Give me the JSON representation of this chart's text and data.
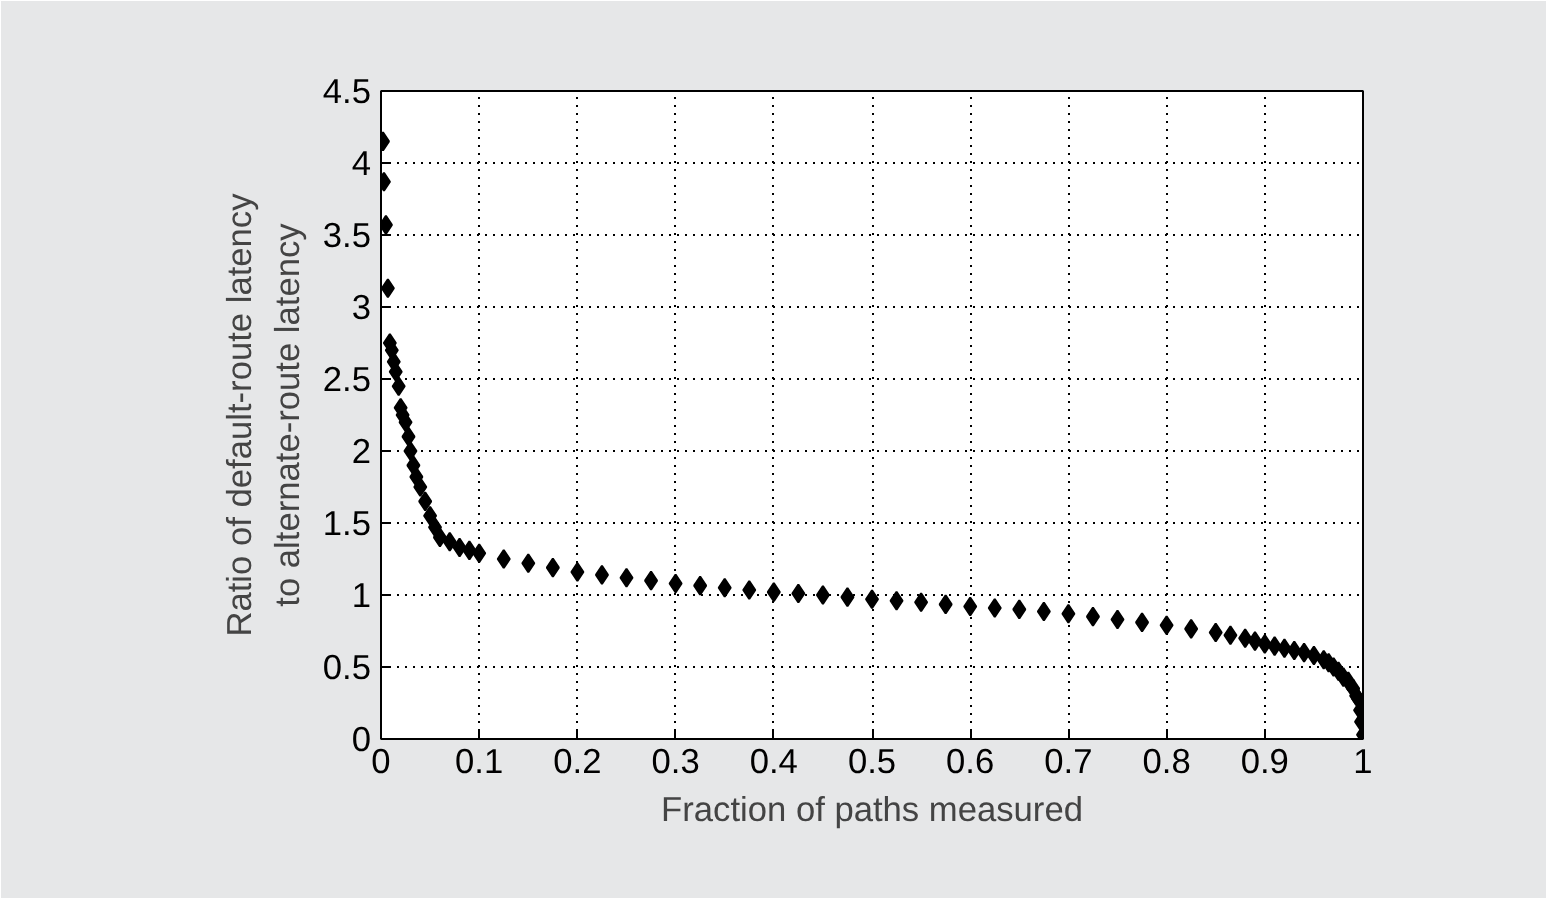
{
  "chart_data": {
    "type": "scatter",
    "xlabel": "Fraction of paths measured",
    "ylabel": "Ratio of default-route latency\nto alternate-route latency",
    "x": [
      0.002,
      0.003,
      0.005,
      0.007,
      0.009,
      0.011,
      0.013,
      0.015,
      0.018,
      0.02,
      0.022,
      0.025,
      0.028,
      0.03,
      0.033,
      0.036,
      0.04,
      0.045,
      0.05,
      0.055,
      0.06,
      0.07,
      0.08,
      0.09,
      0.1,
      0.125,
      0.15,
      0.175,
      0.2,
      0.225,
      0.25,
      0.275,
      0.3,
      0.325,
      0.35,
      0.375,
      0.4,
      0.425,
      0.45,
      0.475,
      0.5,
      0.525,
      0.55,
      0.575,
      0.6,
      0.625,
      0.65,
      0.675,
      0.7,
      0.725,
      0.75,
      0.775,
      0.8,
      0.825,
      0.85,
      0.865,
      0.88,
      0.89,
      0.9,
      0.91,
      0.92,
      0.93,
      0.94,
      0.95,
      0.96,
      0.965,
      0.97,
      0.975,
      0.98,
      0.985,
      0.99,
      0.993,
      0.995,
      0.997,
      0.998,
      1.0
    ],
    "values": [
      4.15,
      3.87,
      3.57,
      3.13,
      2.75,
      2.7,
      2.62,
      2.55,
      2.45,
      2.3,
      2.25,
      2.2,
      2.1,
      2.0,
      1.9,
      1.82,
      1.75,
      1.65,
      1.55,
      1.47,
      1.4,
      1.37,
      1.33,
      1.31,
      1.29,
      1.25,
      1.22,
      1.19,
      1.16,
      1.14,
      1.12,
      1.1,
      1.08,
      1.065,
      1.05,
      1.035,
      1.02,
      1.01,
      1.0,
      0.985,
      0.97,
      0.96,
      0.95,
      0.935,
      0.92,
      0.91,
      0.9,
      0.885,
      0.87,
      0.85,
      0.83,
      0.81,
      0.79,
      0.765,
      0.74,
      0.72,
      0.7,
      0.68,
      0.66,
      0.645,
      0.63,
      0.615,
      0.6,
      0.58,
      0.55,
      0.53,
      0.5,
      0.47,
      0.43,
      0.4,
      0.35,
      0.3,
      0.28,
      0.2,
      0.12,
      0.03
    ],
    "color": "#000000",
    "marker": "diamond",
    "grid": true,
    "xlim": [
      0,
      1
    ],
    "xticks": [
      0,
      0.1,
      0.2,
      0.3,
      0.4,
      0.5,
      0.6,
      0.7,
      0.8,
      0.9,
      1
    ],
    "ylim": [
      0,
      4.5
    ],
    "yticks": [
      0,
      0.5,
      1,
      1.5,
      2,
      2.5,
      3,
      3.5,
      4,
      4.5
    ]
  }
}
